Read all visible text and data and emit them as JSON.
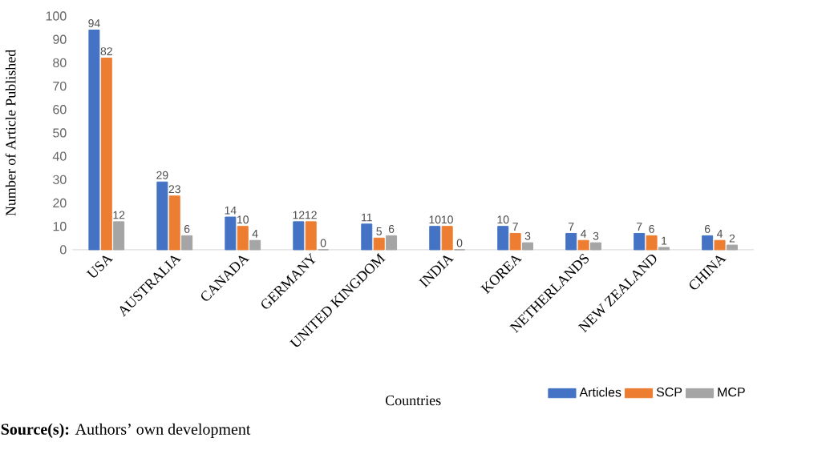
{
  "chart_data": {
    "type": "bar",
    "xlabel": "Countries",
    "ylabel": "Number of Article Published",
    "categories": [
      "USA",
      "AUSTRALIA",
      "CANADA",
      "GERMANY",
      "UNITED KINGDOM",
      "INDIA",
      "KOREA",
      "NETHERLANDS",
      "NEW ZEALAND",
      "CHINA"
    ],
    "series": [
      {
        "name": "Articles",
        "color": "#4472c4",
        "values": [
          94,
          29,
          14,
          12,
          11,
          10,
          10,
          7,
          7,
          6
        ]
      },
      {
        "name": "SCP",
        "color": "#ed7d31",
        "values": [
          82,
          23,
          10,
          12,
          5,
          10,
          7,
          4,
          6,
          4
        ]
      },
      {
        "name": "MCP",
        "color": "#a5a5a5",
        "values": [
          12,
          6,
          4,
          0,
          6,
          0,
          3,
          3,
          1,
          2
        ]
      }
    ],
    "ylim": [
      0,
      100
    ],
    "yticks": [
      0,
      10,
      20,
      30,
      40,
      50,
      60,
      70,
      80,
      90,
      100
    ],
    "data_labels": true,
    "grid": false,
    "legend": "bottom right",
    "annotations": [
      "**Source(s):** Authors’ own development"
    ]
  }
}
